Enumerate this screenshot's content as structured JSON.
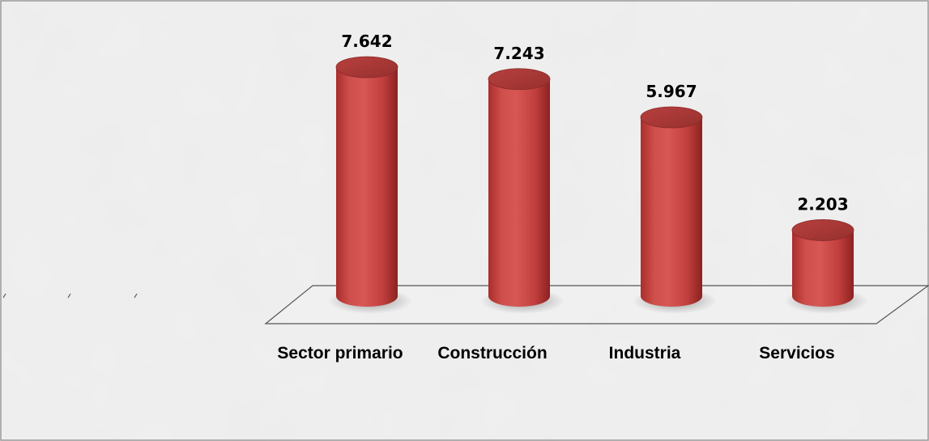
{
  "chart_data": {
    "type": "bar",
    "categories": [
      "Sector primario",
      "Construcción",
      "Industria",
      "Servicios"
    ],
    "values": [
      7.642,
      7.243,
      5.967,
      2.203
    ],
    "value_labels": [
      "7.642",
      "7.243",
      "5.967",
      "2.203"
    ],
    "title": "",
    "xlabel": "",
    "ylabel": "",
    "ylim": [
      0,
      8
    ],
    "grid": false,
    "legend": "none",
    "bar_color": "#c94543",
    "bar_shape": "cylinder",
    "background_color": "#ececec"
  }
}
